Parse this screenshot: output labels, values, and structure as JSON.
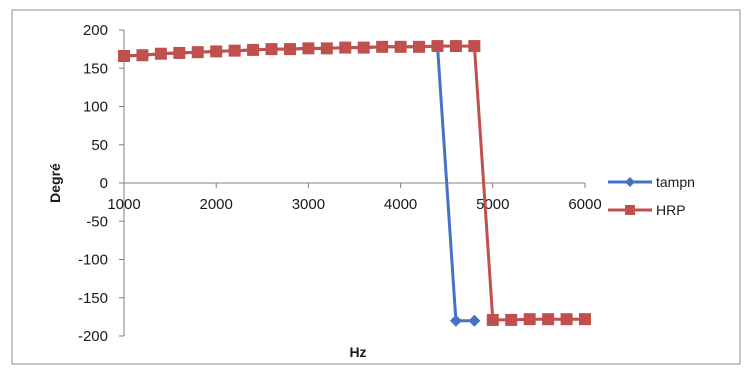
{
  "chart_data": {
    "type": "line",
    "xlabel": "Hz",
    "ylabel": "Degré",
    "xlim": [
      1000,
      6000
    ],
    "ylim": [
      -200,
      200
    ],
    "x_ticks": [
      1000,
      2000,
      3000,
      4000,
      5000,
      6000
    ],
    "y_ticks": [
      200,
      150,
      100,
      50,
      0,
      -50,
      -100,
      -150,
      -200
    ],
    "grid": false,
    "legend_position": "right",
    "series": [
      {
        "name": "tampn",
        "color": "#4472C4",
        "marker": "diamond",
        "points": [
          {
            "x": 1000,
            "y": 166
          },
          {
            "x": 1200,
            "y": 167
          },
          {
            "x": 1400,
            "y": 169
          },
          {
            "x": 1600,
            "y": 170
          },
          {
            "x": 1800,
            "y": 171
          },
          {
            "x": 2000,
            "y": 172
          },
          {
            "x": 2200,
            "y": 173
          },
          {
            "x": 2400,
            "y": 174
          },
          {
            "x": 2600,
            "y": 175
          },
          {
            "x": 2800,
            "y": 175
          },
          {
            "x": 3000,
            "y": 176
          },
          {
            "x": 3200,
            "y": 176
          },
          {
            "x": 3400,
            "y": 177
          },
          {
            "x": 3600,
            "y": 177
          },
          {
            "x": 3800,
            "y": 178
          },
          {
            "x": 4000,
            "y": 178
          },
          {
            "x": 4200,
            "y": 178
          },
          {
            "x": 4400,
            "y": 179
          },
          {
            "x": 4600,
            "y": -180
          },
          {
            "x": 4800,
            "y": -180
          }
        ]
      },
      {
        "name": "HRP",
        "color": "#C0504D",
        "marker": "square",
        "points": [
          {
            "x": 1000,
            "y": 166
          },
          {
            "x": 1200,
            "y": 167
          },
          {
            "x": 1400,
            "y": 169
          },
          {
            "x": 1600,
            "y": 170
          },
          {
            "x": 1800,
            "y": 171
          },
          {
            "x": 2000,
            "y": 172
          },
          {
            "x": 2200,
            "y": 173
          },
          {
            "x": 2400,
            "y": 174
          },
          {
            "x": 2600,
            "y": 175
          },
          {
            "x": 2800,
            "y": 175
          },
          {
            "x": 3000,
            "y": 176
          },
          {
            "x": 3200,
            "y": 176
          },
          {
            "x": 3400,
            "y": 177
          },
          {
            "x": 3600,
            "y": 177
          },
          {
            "x": 3800,
            "y": 178
          },
          {
            "x": 4000,
            "y": 178
          },
          {
            "x": 4200,
            "y": 178
          },
          {
            "x": 4400,
            "y": 179
          },
          {
            "x": 4600,
            "y": 179
          },
          {
            "x": 4800,
            "y": 179
          },
          {
            "x": 5000,
            "y": -179
          },
          {
            "x": 5200,
            "y": -179
          },
          {
            "x": 5400,
            "y": -178
          },
          {
            "x": 5600,
            "y": -178
          },
          {
            "x": 5800,
            "y": -178
          },
          {
            "x": 6000,
            "y": -178
          }
        ]
      }
    ]
  }
}
